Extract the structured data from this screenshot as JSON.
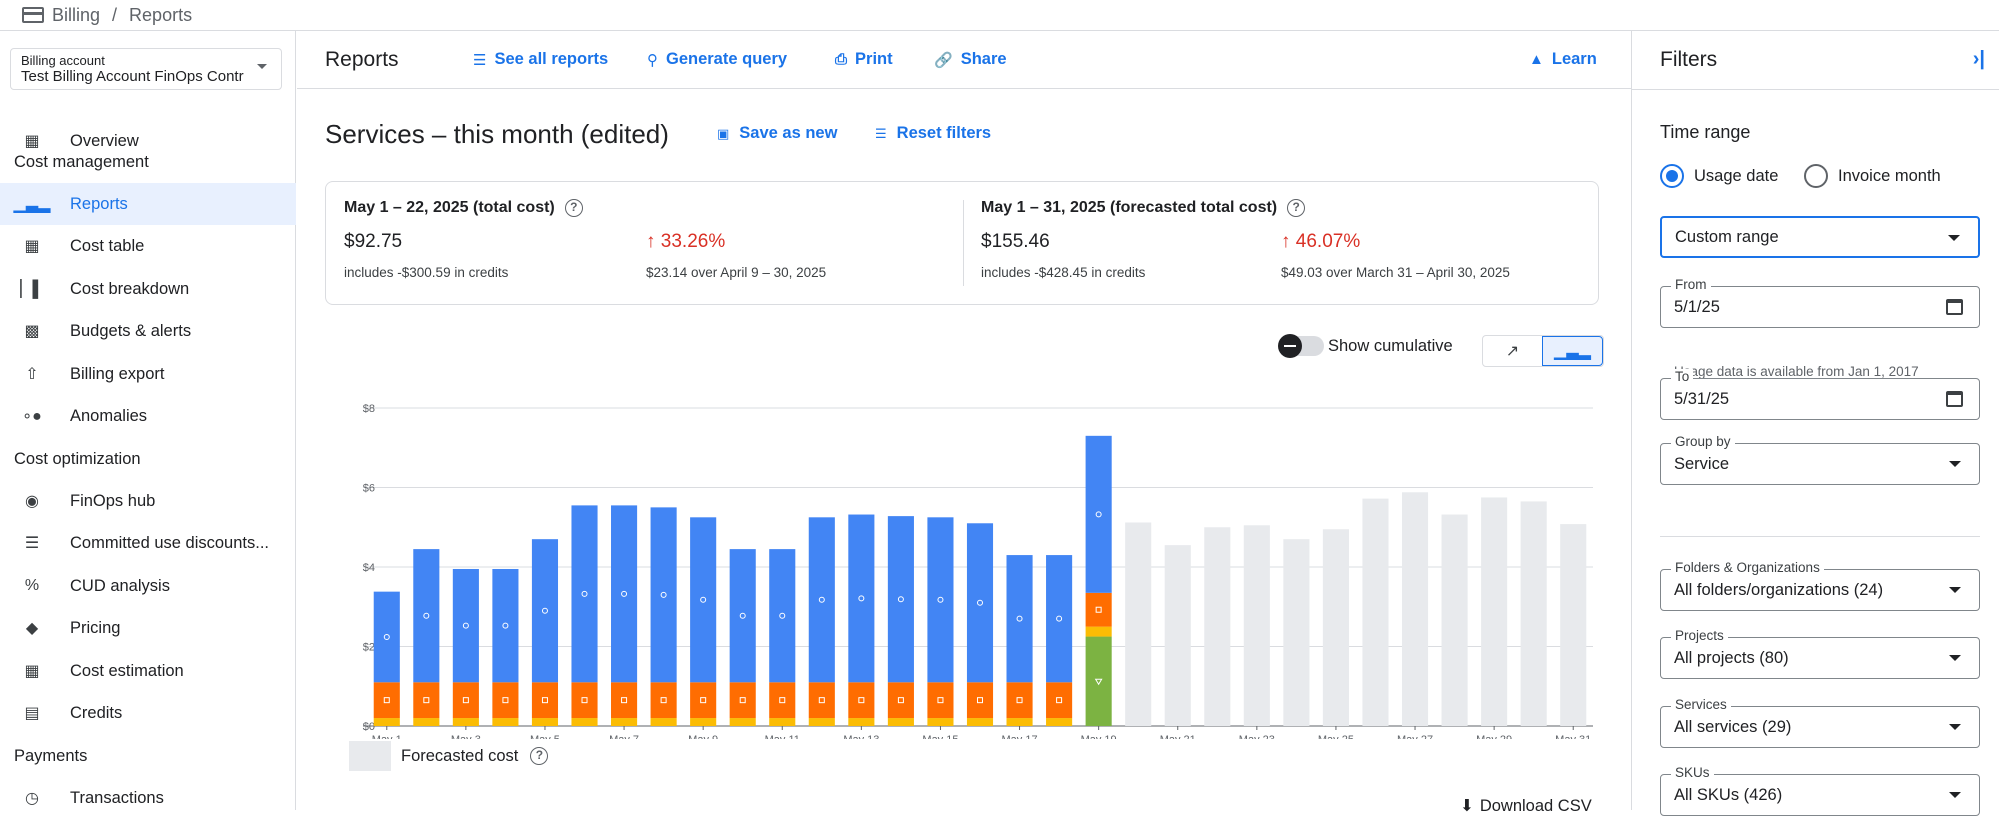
{
  "breadcrumb": {
    "root": "Billing",
    "separator": "/",
    "current": "Reports"
  },
  "sidebar": {
    "account_label": "Billing account",
    "account_value": "Test Billing Account FinOps Contr",
    "items": [
      {
        "label": "Overview"
      },
      {
        "label": "Reports"
      },
      {
        "label": "Cost table"
      },
      {
        "label": "Cost breakdown"
      },
      {
        "label": "Budgets & alerts"
      },
      {
        "label": "Billing export"
      },
      {
        "label": "Anomalies"
      },
      {
        "label": "FinOps hub"
      },
      {
        "label": "Committed use discounts..."
      },
      {
        "label": "CUD analysis"
      },
      {
        "label": "Pricing"
      },
      {
        "label": "Cost estimation"
      },
      {
        "label": "Credits"
      },
      {
        "label": "Transactions"
      }
    ],
    "sections": [
      "Cost management",
      "Cost optimization",
      "Payments"
    ]
  },
  "header": {
    "title": "Reports",
    "see_all": "See all reports",
    "generate": "Generate query",
    "print": "Print",
    "share": "Share",
    "learn": "Learn"
  },
  "report": {
    "title": "Services – this month (edited)",
    "save_as_new": "Save as new",
    "reset_filters": "Reset filters"
  },
  "summary": {
    "current": {
      "heading": "May 1 – 22, 2025 (total cost)",
      "total": "$92.75",
      "credits": "includes -$300.59 in credits",
      "change": "33.26%",
      "comparison": "$23.14 over April 9 – 30, 2025"
    },
    "forecast": {
      "heading": "May 1 – 31, 2025 (forecasted total cost)",
      "total": "$155.46",
      "credits": "includes -$428.45 in credits",
      "change": "46.07%",
      "comparison": "$49.03 over March 31 – April 30, 2025"
    }
  },
  "controls": {
    "show_cumulative": "Show cumulative",
    "cumulative_on": false,
    "chart_mode": "bar"
  },
  "legend": {
    "forecast_label": "Forecasted cost"
  },
  "download_label": "Download CSV",
  "colors": {
    "blue": "#4285f4",
    "red": "#ea4335",
    "orange": "#ff6d01",
    "yellow": "#fbbc04",
    "green": "#7cb342",
    "forecast": "#e8eaed",
    "accent": "#1a73e8"
  },
  "chart_data": {
    "type": "bar",
    "stacked": true,
    "ylim": [
      0,
      8
    ],
    "yticks": [
      "$0",
      "$2",
      "$4",
      "$6",
      "$8"
    ],
    "ytick_values": [
      0,
      2,
      4,
      6,
      8
    ],
    "categories": [
      "May 1",
      "May 2",
      "May 3",
      "May 4",
      "May 5",
      "May 6",
      "May 7",
      "May 8",
      "May 9",
      "May 10",
      "May 11",
      "May 12",
      "May 13",
      "May 14",
      "May 15",
      "May 16",
      "May 17",
      "May 18",
      "May 19",
      "May 20",
      "May 21",
      "May 22",
      "May 23",
      "May 24",
      "May 25",
      "May 26",
      "May 27",
      "May 28",
      "May 29",
      "May 30",
      "May 31"
    ],
    "xtick_labels": [
      "May 1",
      "May 3",
      "May 5",
      "May 7",
      "May 9",
      "May 11",
      "May 13",
      "May 15",
      "May 17",
      "May 19",
      "May 21",
      "May 23",
      "May 25",
      "May 27",
      "May 29",
      "May 31"
    ],
    "series": [
      {
        "color": "#7cb342",
        "values": [
          0,
          0,
          0,
          0,
          0,
          0,
          0,
          0,
          0,
          0,
          0,
          0,
          0,
          0,
          0,
          0,
          0,
          0,
          2.25,
          0,
          0,
          0,
          0,
          0,
          0,
          0,
          0,
          0,
          0,
          0,
          0
        ]
      },
      {
        "color": "#fbbc04",
        "values": [
          0.2,
          0.2,
          0.2,
          0.2,
          0.2,
          0.2,
          0.2,
          0.2,
          0.2,
          0.2,
          0.2,
          0.2,
          0.2,
          0.2,
          0.2,
          0.2,
          0.2,
          0.2,
          0.25,
          0,
          0,
          0,
          0,
          0,
          0,
          0,
          0,
          0,
          0,
          0,
          0
        ]
      },
      {
        "color": "#ff6d01",
        "values": [
          0.9,
          0.9,
          0.9,
          0.9,
          0.9,
          0.9,
          0.9,
          0.9,
          0.9,
          0.9,
          0.9,
          0.9,
          0.9,
          0.9,
          0.9,
          0.9,
          0.9,
          0.9,
          0.85,
          0,
          0,
          0,
          0,
          0,
          0,
          0,
          0,
          0,
          0,
          0,
          0
        ]
      },
      {
        "color": "#4285f4",
        "values": [
          2.28,
          3.35,
          2.85,
          2.85,
          3.6,
          4.45,
          4.45,
          4.4,
          4.15,
          3.35,
          3.35,
          4.15,
          4.22,
          4.18,
          4.15,
          4.0,
          3.2,
          3.2,
          3.95,
          0,
          0,
          0,
          0,
          0,
          0,
          0,
          0,
          0,
          0,
          0,
          0
        ]
      },
      {
        "name": "Forecasted cost",
        "color": "#e8eaed",
        "values": [
          0,
          0,
          0,
          0,
          0,
          0,
          0,
          0,
          0,
          0,
          0,
          0,
          0,
          0,
          0,
          0,
          0,
          0,
          0,
          5.12,
          4.55,
          5.0,
          5.05,
          4.7,
          4.95,
          5.72,
          5.88,
          5.32,
          5.75,
          5.65,
          5.08
        ]
      }
    ]
  },
  "filters": {
    "title": "Filters",
    "time_range": "Time range",
    "usage_date": "Usage date",
    "invoice_month": "Invoice month",
    "range_type": "Custom range",
    "from_label": "From",
    "from_value": "5/1/25",
    "hint": "Usage data is available from Jan 1, 2017",
    "to_label": "To",
    "to_value": "5/31/25",
    "group_by_label": "Group by",
    "group_by_value": "Service",
    "folders_label": "Folders & Organizations",
    "folders_value": "All folders/organizations (24)",
    "projects_label": "Projects",
    "projects_value": "All projects (80)",
    "services_label": "Services",
    "services_value": "All services (29)",
    "skus_label": "SKUs",
    "skus_value": "All SKUs (426)"
  }
}
